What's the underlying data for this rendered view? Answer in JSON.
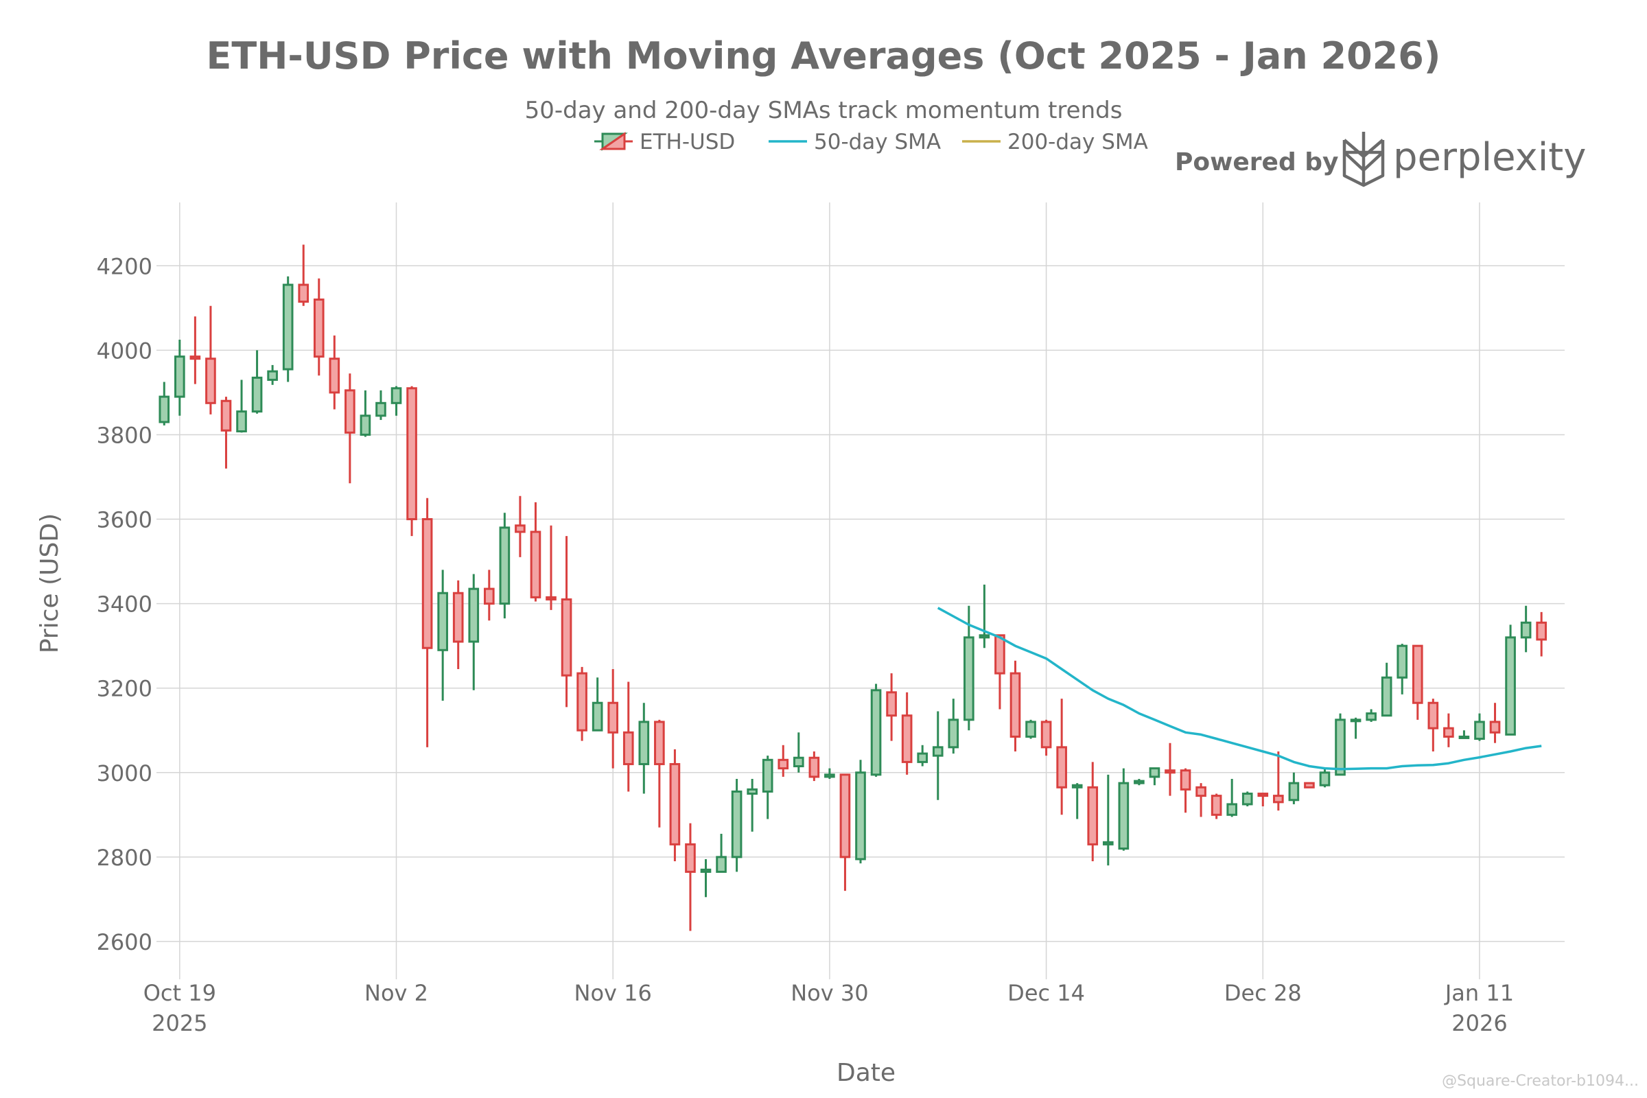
{
  "colors": {
    "up": "#2e8b57",
    "up_fill": "#9fd0ae",
    "down": "#d9403f",
    "down_fill": "#f3a3a3",
    "sma50": "#23b5c9",
    "sma200": "#c9b04b",
    "grid": "#d5d5d5",
    "text": "#6b6b6b"
  },
  "brand": {
    "prefix": "Powered by",
    "name": "perplexity",
    "icon": "perplexity-logo-icon"
  },
  "watermark": "@Square-Creator-b1094...",
  "chart_data": {
    "type": "candlestick",
    "title": "ETH-USD Price with Moving Averages (Oct 2025 - Jan 2026)",
    "subtitle": "50-day and 200-day SMAs track momentum trends",
    "xlabel": "Date",
    "ylabel": "Price (USD)",
    "ylim": [
      2530,
      4350
    ],
    "xlim": [
      "2025-10-17T12:00",
      "2026-01-16T12:00"
    ],
    "y_ticks": [
      2600,
      2800,
      3000,
      3200,
      3400,
      3600,
      3800,
      4000,
      4200
    ],
    "x_ticks": [
      {
        "date": "2025-10-19",
        "label": "Oct 19",
        "sub": "2025"
      },
      {
        "date": "2025-11-02",
        "label": "Nov 2",
        "sub": ""
      },
      {
        "date": "2025-11-16",
        "label": "Nov 16",
        "sub": ""
      },
      {
        "date": "2025-11-30",
        "label": "Nov 30",
        "sub": ""
      },
      {
        "date": "2025-12-14",
        "label": "Dec 14",
        "sub": ""
      },
      {
        "date": "2025-12-28",
        "label": "Dec 28",
        "sub": ""
      },
      {
        "date": "2026-01-11",
        "label": "Jan 11",
        "sub": "2026"
      }
    ],
    "grid": true,
    "legend_position": "top-center",
    "legend": [
      {
        "name": "ETH-USD",
        "kind": "candle"
      },
      {
        "name": "50-day SMA",
        "kind": "line",
        "color": "#23b5c9"
      },
      {
        "name": "200-day SMA",
        "kind": "line",
        "color": "#c9b04b"
      }
    ],
    "start_date": "2025-10-18",
    "ohlc": [
      [
        3830,
        3925,
        3822,
        3890
      ],
      [
        3890,
        4025,
        3845,
        3985
      ],
      [
        3985,
        4080,
        3920,
        3980
      ],
      [
        3980,
        4105,
        3848,
        3875
      ],
      [
        3880,
        3890,
        3720,
        3810
      ],
      [
        3808,
        3930,
        3805,
        3855
      ],
      [
        3855,
        4000,
        3850,
        3935
      ],
      [
        3930,
        3965,
        3918,
        3950
      ],
      [
        3955,
        4175,
        3925,
        4155
      ],
      [
        4155,
        4250,
        4105,
        4115
      ],
      [
        4120,
        4170,
        3940,
        3985
      ],
      [
        3980,
        4035,
        3860,
        3900
      ],
      [
        3905,
        3945,
        3685,
        3805
      ],
      [
        3800,
        3905,
        3795,
        3845
      ],
      [
        3845,
        3905,
        3835,
        3875
      ],
      [
        3875,
        3915,
        3845,
        3910
      ],
      [
        3910,
        3915,
        3560,
        3600
      ],
      [
        3600,
        3650,
        3060,
        3295
      ],
      [
        3290,
        3480,
        3170,
        3425
      ],
      [
        3425,
        3455,
        3245,
        3310
      ],
      [
        3310,
        3470,
        3195,
        3435
      ],
      [
        3435,
        3480,
        3360,
        3400
      ],
      [
        3400,
        3615,
        3365,
        3580
      ],
      [
        3585,
        3655,
        3510,
        3570
      ],
      [
        3570,
        3640,
        3405,
        3415
      ],
      [
        3415,
        3585,
        3385,
        3410
      ],
      [
        3410,
        3560,
        3155,
        3230
      ],
      [
        3235,
        3250,
        3075,
        3100
      ],
      [
        3100,
        3225,
        3100,
        3165
      ],
      [
        3165,
        3245,
        3010,
        3095
      ],
      [
        3095,
        3215,
        2955,
        3020
      ],
      [
        3020,
        3165,
        2950,
        3120
      ],
      [
        3120,
        3125,
        2870,
        3020
      ],
      [
        3020,
        3055,
        2790,
        2830
      ],
      [
        2830,
        2880,
        2625,
        2765
      ],
      [
        2765,
        2795,
        2705,
        2770
      ],
      [
        2765,
        2855,
        2765,
        2800
      ],
      [
        2800,
        2985,
        2765,
        2955
      ],
      [
        2950,
        2985,
        2860,
        2960
      ],
      [
        2955,
        3040,
        2890,
        3030
      ],
      [
        3030,
        3065,
        2990,
        3010
      ],
      [
        3015,
        3095,
        3000,
        3035
      ],
      [
        3035,
        3050,
        2980,
        2990
      ],
      [
        2990,
        3010,
        2985,
        2995
      ],
      [
        2995,
        2995,
        2720,
        2800
      ],
      [
        2795,
        3030,
        2785,
        3000
      ],
      [
        2995,
        3210,
        2990,
        3195
      ],
      [
        3190,
        3235,
        3075,
        3135
      ],
      [
        3135,
        3190,
        2995,
        3025
      ],
      [
        3025,
        3065,
        3015,
        3045
      ],
      [
        3040,
        3145,
        2935,
        3060
      ],
      [
        3060,
        3175,
        3045,
        3125
      ],
      [
        3125,
        3395,
        3100,
        3320
      ],
      [
        3320,
        3445,
        3295,
        3325
      ],
      [
        3325,
        3325,
        3150,
        3235
      ],
      [
        3235,
        3265,
        3050,
        3085
      ],
      [
        3085,
        3125,
        3080,
        3120
      ],
      [
        3120,
        3125,
        3040,
        3060
      ],
      [
        3060,
        3175,
        2900,
        2965
      ],
      [
        2965,
        2975,
        2890,
        2970
      ],
      [
        2965,
        3025,
        2790,
        2830
      ],
      [
        2830,
        2995,
        2780,
        2835
      ],
      [
        2820,
        3010,
        2815,
        2975
      ],
      [
        2975,
        2985,
        2970,
        2980
      ],
      [
        2990,
        3010,
        2970,
        3010
      ],
      [
        3005,
        3070,
        2945,
        3000
      ],
      [
        3005,
        3010,
        2905,
        2960
      ],
      [
        2965,
        2975,
        2895,
        2945
      ],
      [
        2945,
        2950,
        2890,
        2900
      ],
      [
        2900,
        2985,
        2895,
        2925
      ],
      [
        2925,
        2955,
        2920,
        2950
      ],
      [
        2950,
        2950,
        2920,
        2945
      ],
      [
        2945,
        3050,
        2910,
        2930
      ],
      [
        2935,
        3000,
        2925,
        2975
      ],
      [
        2975,
        2975,
        2965,
        2965
      ],
      [
        2970,
        3010,
        2965,
        3000
      ],
      [
        2995,
        3140,
        2995,
        3125
      ],
      [
        3125,
        3130,
        3080,
        3125
      ],
      [
        3125,
        3150,
        3120,
        3140
      ],
      [
        3135,
        3260,
        3135,
        3225
      ],
      [
        3225,
        3305,
        3185,
        3300
      ],
      [
        3300,
        3300,
        3125,
        3165
      ],
      [
        3165,
        3175,
        3050,
        3105
      ],
      [
        3105,
        3140,
        3060,
        3085
      ],
      [
        3085,
        3100,
        3080,
        3085
      ],
      [
        3080,
        3140,
        3075,
        3120
      ],
      [
        3120,
        3165,
        3070,
        3095
      ],
      [
        3090,
        3350,
        3090,
        3320
      ],
      [
        3320,
        3395,
        3285,
        3355
      ],
      [
        3355,
        3380,
        3275,
        3315
      ]
    ],
    "sma50": [
      [
        "2025-12-07",
        3390
      ],
      [
        "2025-12-08",
        3370
      ],
      [
        "2025-12-09",
        3350
      ],
      [
        "2025-12-10",
        3335
      ],
      [
        "2025-12-11",
        3320
      ],
      [
        "2025-12-12",
        3300
      ],
      [
        "2025-12-13",
        3285
      ],
      [
        "2025-12-14",
        3270
      ],
      [
        "2025-12-15",
        3245
      ],
      [
        "2025-12-16",
        3220
      ],
      [
        "2025-12-17",
        3195
      ],
      [
        "2025-12-18",
        3175
      ],
      [
        "2025-12-19",
        3160
      ],
      [
        "2025-12-20",
        3140
      ],
      [
        "2025-12-21",
        3125
      ],
      [
        "2025-12-22",
        3110
      ],
      [
        "2025-12-23",
        3095
      ],
      [
        "2025-12-24",
        3090
      ],
      [
        "2025-12-25",
        3080
      ],
      [
        "2025-12-26",
        3070
      ],
      [
        "2025-12-27",
        3060
      ],
      [
        "2025-12-28",
        3050
      ],
      [
        "2025-12-29",
        3040
      ],
      [
        "2025-12-30",
        3025
      ],
      [
        "2025-12-31",
        3015
      ],
      [
        "2026-01-01",
        3010
      ],
      [
        "2026-01-02",
        3008
      ],
      [
        "2026-01-03",
        3009
      ],
      [
        "2026-01-04",
        3010
      ],
      [
        "2026-01-05",
        3010
      ],
      [
        "2026-01-06",
        3015
      ],
      [
        "2026-01-07",
        3017
      ],
      [
        "2026-01-08",
        3018
      ],
      [
        "2026-01-09",
        3022
      ],
      [
        "2026-01-10",
        3030
      ],
      [
        "2026-01-11",
        3036
      ],
      [
        "2026-01-12",
        3043
      ],
      [
        "2026-01-13",
        3050
      ],
      [
        "2026-01-14",
        3058
      ],
      [
        "2026-01-15",
        3063
      ]
    ],
    "sma200": []
  }
}
